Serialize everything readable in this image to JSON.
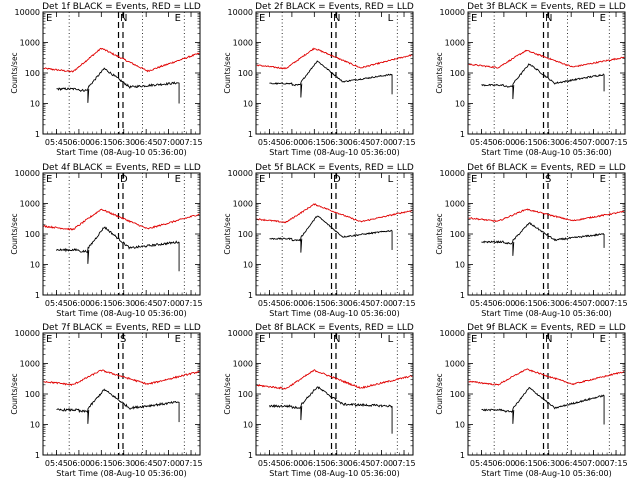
{
  "chart_data": {
    "type": "line",
    "x_axis": {
      "label": "Start Time (08-Aug-10 05:36:00)",
      "ticks": [
        "05:45",
        "06:00",
        "06:15",
        "06:30",
        "06:45",
        "07:00",
        "07:15"
      ],
      "tick_minutes": [
        9,
        24,
        39,
        54,
        69,
        84,
        99
      ],
      "range_minutes": [
        0,
        105
      ]
    },
    "y_axis": {
      "label": "Counts/sec",
      "scale": "log",
      "ticks": [
        "1",
        "10",
        "100",
        "1000",
        "10000"
      ],
      "tick_values": [
        1,
        10,
        100,
        1000,
        10000
      ],
      "range": [
        1,
        10000
      ]
    },
    "colors": {
      "events": "#000000",
      "lld": "#e00000"
    },
    "panels": [
      {
        "title": "Det 1f BLACK = Events, RED = LLD",
        "markers": [
          "E",
          "N",
          "E"
        ],
        "lld": {
          "base": 110,
          "peak": 650,
          "end": 450,
          "noise": 0.06
        },
        "events": {
          "base": 30,
          "peak": 140,
          "end": 48,
          "noise": 0.08,
          "drop": 10
        }
      },
      {
        "title": "Det 2f BLACK = Events, RED = LLD",
        "markers": [
          "E",
          "N",
          "L"
        ],
        "lld": {
          "base": 140,
          "peak": 650,
          "end": 400,
          "noise": 0.05
        },
        "events": {
          "base": 45,
          "peak": 250,
          "end": 90,
          "noise": 0.05,
          "drop": 20
        }
      },
      {
        "title": "Det 3f BLACK = Events, RED = LLD",
        "markers": [
          "E",
          "N",
          "E"
        ],
        "lld": {
          "base": 150,
          "peak": 550,
          "end": 330,
          "noise": 0.05
        },
        "events": {
          "base": 40,
          "peak": 200,
          "end": 90,
          "noise": 0.06,
          "drop": 25
        }
      },
      {
        "title": "Det 4f BLACK = Events, RED = LLD",
        "markers": [
          "E",
          "D",
          "E"
        ],
        "lld": {
          "base": 140,
          "peak": 650,
          "end": 450,
          "noise": 0.06
        },
        "events": {
          "base": 30,
          "peak": 170,
          "end": 55,
          "noise": 0.08,
          "drop": 6
        }
      },
      {
        "title": "Det 5f BLACK = Events, RED = LLD",
        "markers": [
          "E",
          "D",
          "L"
        ],
        "lld": {
          "base": 240,
          "peak": 950,
          "end": 600,
          "noise": 0.05
        },
        "events": {
          "base": 70,
          "peak": 400,
          "end": 130,
          "noise": 0.05,
          "drop": 30
        }
      },
      {
        "title": "Det 6f BLACK = Events, RED = LLD",
        "markers": [
          "E",
          "S",
          "E"
        ],
        "lld": {
          "base": 260,
          "peak": 650,
          "end": 550,
          "noise": 0.05
        },
        "events": {
          "base": 55,
          "peak": 230,
          "end": 100,
          "noise": 0.06,
          "drop": 35
        }
      },
      {
        "title": "Det 7f BLACK = Events, RED = LLD",
        "markers": [
          "E",
          "S",
          "E"
        ],
        "lld": {
          "base": 200,
          "peak": 600,
          "end": 550,
          "noise": 0.06
        },
        "events": {
          "base": 30,
          "peak": 140,
          "end": 55,
          "noise": 0.08,
          "drop": 12
        }
      },
      {
        "title": "Det 8f BLACK = Events, RED = LLD",
        "markers": [
          "E",
          "N",
          "L"
        ],
        "lld": {
          "base": 150,
          "peak": 600,
          "end": 400,
          "noise": 0.06
        },
        "events": {
          "base": 40,
          "peak": 170,
          "end": 40,
          "noise": 0.08,
          "drop": 5
        }
      },
      {
        "title": "Det 9f BLACK = Events, RED = LLD",
        "markers": [
          "E",
          "N",
          "E"
        ],
        "lld": {
          "base": 200,
          "peak": 650,
          "end": 550,
          "noise": 0.05
        },
        "events": {
          "base": 30,
          "peak": 160,
          "end": 90,
          "noise": 0.06,
          "drop": 10
        }
      }
    ]
  }
}
